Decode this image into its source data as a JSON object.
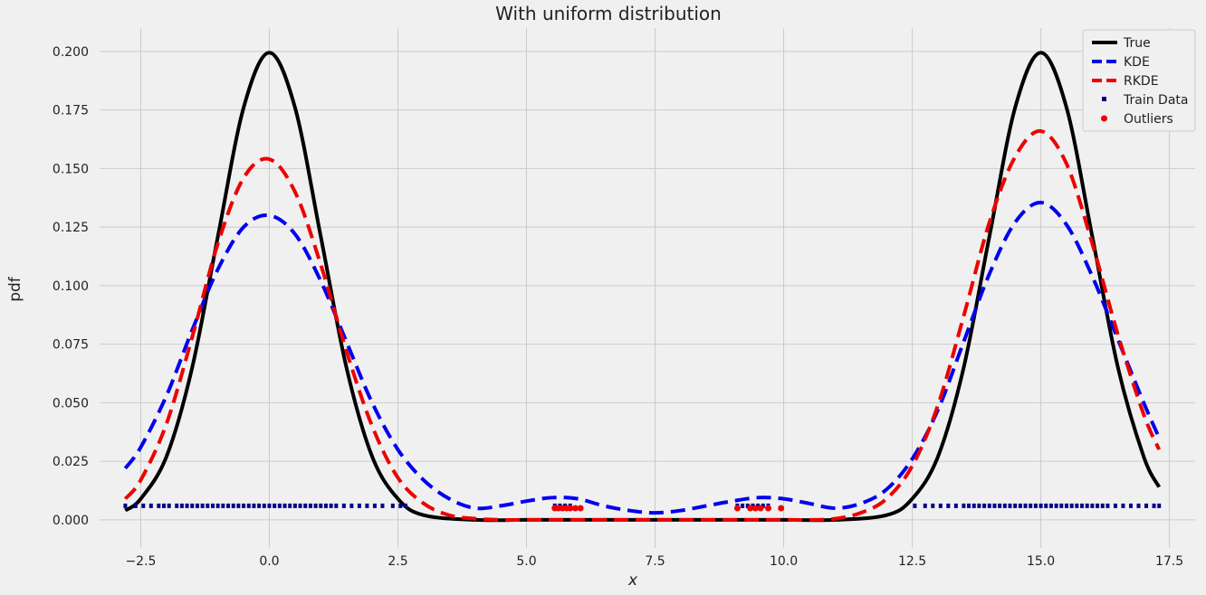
{
  "chart_data": {
    "type": "line",
    "title": "With uniform distribution",
    "xlabel": "x",
    "ylabel": "pdf",
    "xlim": [
      -3.3,
      18.0
    ],
    "ylim": [
      -0.012,
      0.21
    ],
    "xticks": [
      -2.5,
      0.0,
      2.5,
      5.0,
      7.5,
      10.0,
      12.5,
      15.0,
      17.5
    ],
    "xtick_labels": [
      "−2.5",
      "0.0",
      "2.5",
      "5.0",
      "7.5",
      "10.0",
      "12.5",
      "15.0",
      "17.5"
    ],
    "yticks": [
      0.0,
      0.025,
      0.05,
      0.075,
      0.1,
      0.125,
      0.15,
      0.175,
      0.2
    ],
    "ytick_labels": [
      "0.000",
      "0.025",
      "0.050",
      "0.075",
      "0.100",
      "0.125",
      "0.150",
      "0.175",
      "0.200"
    ],
    "grid": true,
    "legend_position": "top-right",
    "series": [
      {
        "name": "True",
        "style": "solid",
        "color": "#000000",
        "x": [
          -2.8,
          -2.5,
          -2.0,
          -1.5,
          -1.0,
          -0.5,
          0.0,
          0.5,
          1.0,
          1.5,
          2.0,
          2.5,
          3.0,
          4.0,
          5.0,
          6.0,
          7.5,
          9.0,
          10.0,
          11.0,
          12.0,
          12.5,
          13.0,
          13.5,
          14.0,
          14.5,
          15.0,
          15.5,
          16.0,
          16.5,
          17.0,
          17.3
        ],
        "y": [
          0.004,
          0.009,
          0.027,
          0.065,
          0.121,
          0.176,
          0.1995,
          0.176,
          0.121,
          0.065,
          0.027,
          0.009,
          0.002,
          0.0,
          0.0,
          0.0,
          0.0,
          0.0,
          0.0,
          0.0,
          0.002,
          0.009,
          0.027,
          0.065,
          0.121,
          0.176,
          0.1995,
          0.176,
          0.121,
          0.065,
          0.027,
          0.014
        ]
      },
      {
        "name": "KDE",
        "style": "dashed",
        "color": "#0000ee",
        "x": [
          -2.8,
          -2.5,
          -2.0,
          -1.5,
          -1.0,
          -0.5,
          0.0,
          0.5,
          1.0,
          1.5,
          2.0,
          2.5,
          3.0,
          3.5,
          4.0,
          4.5,
          5.0,
          5.5,
          6.0,
          6.5,
          7.0,
          7.5,
          8.0,
          8.5,
          9.0,
          9.5,
          10.0,
          10.5,
          11.0,
          11.5,
          12.0,
          12.5,
          13.0,
          13.5,
          14.0,
          14.5,
          15.0,
          15.5,
          16.0,
          16.5,
          17.0,
          17.3
        ],
        "y": [
          0.022,
          0.031,
          0.053,
          0.081,
          0.107,
          0.125,
          0.13,
          0.122,
          0.102,
          0.076,
          0.05,
          0.03,
          0.017,
          0.009,
          0.005,
          0.006,
          0.008,
          0.0095,
          0.009,
          0.006,
          0.004,
          0.003,
          0.004,
          0.006,
          0.008,
          0.0095,
          0.009,
          0.007,
          0.005,
          0.007,
          0.013,
          0.026,
          0.047,
          0.076,
          0.105,
          0.127,
          0.1355,
          0.126,
          0.104,
          0.077,
          0.05,
          0.035
        ]
      },
      {
        "name": "RKDE",
        "style": "dashed",
        "color": "#ee0000",
        "x": [
          -2.8,
          -2.5,
          -2.0,
          -1.5,
          -1.0,
          -0.5,
          0.0,
          0.5,
          1.0,
          1.5,
          2.0,
          2.5,
          3.0,
          3.5,
          4.0,
          4.5,
          5.0,
          6.0,
          7.5,
          9.0,
          10.0,
          10.5,
          11.0,
          11.5,
          12.0,
          12.5,
          13.0,
          13.5,
          14.0,
          14.5,
          15.0,
          15.5,
          16.0,
          16.5,
          17.0,
          17.3
        ],
        "y": [
          0.009,
          0.017,
          0.041,
          0.078,
          0.118,
          0.146,
          0.154,
          0.14,
          0.109,
          0.072,
          0.04,
          0.018,
          0.007,
          0.002,
          0.0005,
          0.0,
          0.0,
          0.0,
          0.0,
          0.0,
          0.0,
          0.0,
          0.0005,
          0.003,
          0.009,
          0.023,
          0.049,
          0.087,
          0.127,
          0.155,
          0.166,
          0.152,
          0.118,
          0.079,
          0.045,
          0.03
        ]
      }
    ],
    "train_data": {
      "name": "Train Data",
      "color": "#00008b",
      "y": 0.006,
      "x": [
        -2.8,
        -2.6,
        -2.45,
        -2.3,
        -2.15,
        -2.05,
        -1.95,
        -1.8,
        -1.7,
        -1.6,
        -1.5,
        -1.4,
        -1.3,
        -1.2,
        -1.1,
        -1.0,
        -0.9,
        -0.8,
        -0.7,
        -0.6,
        -0.5,
        -0.4,
        -0.3,
        -0.2,
        -0.1,
        0.0,
        0.1,
        0.2,
        0.3,
        0.4,
        0.5,
        0.6,
        0.7,
        0.8,
        0.9,
        1.0,
        1.1,
        1.2,
        1.3,
        1.45,
        1.6,
        1.75,
        1.9,
        2.05,
        2.2,
        2.4,
        2.55,
        2.65,
        5.55,
        5.65,
        5.75,
        5.85,
        9.1,
        9.2,
        9.3,
        9.4,
        9.5,
        9.6,
        9.7,
        12.55,
        12.75,
        12.9,
        13.05,
        13.2,
        13.35,
        13.5,
        13.6,
        13.7,
        13.8,
        13.9,
        14.0,
        14.1,
        14.2,
        14.3,
        14.4,
        14.5,
        14.6,
        14.7,
        14.8,
        14.9,
        15.0,
        15.1,
        15.2,
        15.3,
        15.4,
        15.5,
        15.6,
        15.7,
        15.8,
        15.9,
        16.0,
        16.1,
        16.2,
        16.3,
        16.45,
        16.6,
        16.75,
        16.9,
        17.05,
        17.2,
        17.3
      ]
    },
    "outliers": {
      "name": "Outliers",
      "color": "#ee0000",
      "y": 0.005,
      "x": [
        5.55,
        5.62,
        5.7,
        5.78,
        5.85,
        5.95,
        6.05,
        9.1,
        9.35,
        9.45,
        9.55,
        9.7,
        9.95
      ]
    }
  }
}
